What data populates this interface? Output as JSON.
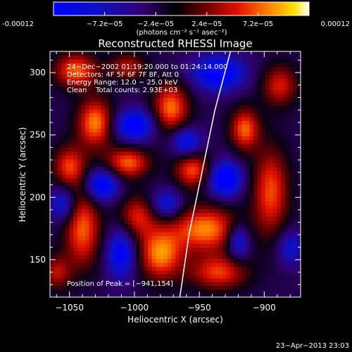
{
  "colorbar": {
    "ticks": [
      "-0.00012",
      "−7.2e−05",
      "−2.4e−05",
      "2.4e−05",
      "7.2e−05",
      "0.00012"
    ],
    "units": "(photons cm⁻² s⁻¹ asec⁻²)",
    "range": [
      -0.00012,
      0.00012
    ]
  },
  "chart_data": {
    "type": "heatmap",
    "title": "Reconstructed RHESSI Image",
    "xlabel": "Heliocentric X (arcsec)",
    "ylabel": "Heliocentric Y (arcsec)",
    "xlim": [
      -1065,
      -872
    ],
    "ylim": [
      120,
      317
    ],
    "xticks": [
      -1050,
      -1000,
      -950,
      -900
    ],
    "xtick_labels": [
      "−1050",
      "−1000",
      "−950",
      "−900"
    ],
    "yticks": [
      150,
      200,
      250,
      300
    ],
    "ytick_labels": [
      "150",
      "200",
      "250",
      "300"
    ],
    "limb_curve": [
      [
        -965,
        120
      ],
      [
        -958,
        170
      ],
      [
        -948,
        220
      ],
      [
        -938,
        270
      ],
      [
        -926,
        317
      ]
    ],
    "peak": [
      -941,
      154
    ],
    "blobs": [
      {
        "x": -1045,
        "y": 302,
        "sx": 12,
        "sy": 10,
        "a": 0.9
      },
      {
        "x": -1030,
        "y": 260,
        "sx": 10,
        "sy": 14,
        "a": 1.0
      },
      {
        "x": -1050,
        "y": 225,
        "sx": 9,
        "sy": 12,
        "a": 0.8
      },
      {
        "x": -1040,
        "y": 175,
        "sx": 10,
        "sy": 22,
        "a": 0.9
      },
      {
        "x": -1005,
        "y": 228,
        "sx": 12,
        "sy": 9,
        "a": 0.9
      },
      {
        "x": -998,
        "y": 185,
        "sx": 10,
        "sy": 12,
        "a": 0.7
      },
      {
        "x": -980,
        "y": 155,
        "sx": 12,
        "sy": 15,
        "a": 1.0
      },
      {
        "x": -972,
        "y": 272,
        "sx": 10,
        "sy": 14,
        "a": 0.95
      },
      {
        "x": -955,
        "y": 222,
        "sx": 10,
        "sy": 10,
        "a": 0.85
      },
      {
        "x": -945,
        "y": 175,
        "sx": 18,
        "sy": 13,
        "a": 1.0
      },
      {
        "x": -935,
        "y": 140,
        "sx": 16,
        "sy": 10,
        "a": 0.8
      },
      {
        "x": -915,
        "y": 255,
        "sx": 8,
        "sy": 12,
        "a": 0.9
      },
      {
        "x": -895,
        "y": 205,
        "sx": 10,
        "sy": 25,
        "a": 0.85
      },
      {
        "x": -888,
        "y": 290,
        "sx": 10,
        "sy": 12,
        "a": 0.7
      },
      {
        "x": -1005,
        "y": 305,
        "sx": 10,
        "sy": 8,
        "a": 0.6
      },
      {
        "x": -1060,
        "y": 140,
        "sx": 8,
        "sy": 10,
        "a": 0.6
      },
      {
        "x": -1025,
        "y": 210,
        "sx": 9,
        "sy": 9,
        "a": -1.0
      },
      {
        "x": -1000,
        "y": 258,
        "sx": 11,
        "sy": 9,
        "a": -1.0
      },
      {
        "x": -935,
        "y": 300,
        "sx": 14,
        "sy": 10,
        "a": -1.0
      },
      {
        "x": -930,
        "y": 215,
        "sx": 9,
        "sy": 10,
        "a": -1.1
      },
      {
        "x": -1010,
        "y": 155,
        "sx": 8,
        "sy": 14,
        "a": -0.9
      },
      {
        "x": -960,
        "y": 245,
        "sx": 8,
        "sy": 8,
        "a": -0.8
      },
      {
        "x": -920,
        "y": 165,
        "sx": 6,
        "sy": 10,
        "a": -0.8
      },
      {
        "x": -1055,
        "y": 195,
        "sx": 7,
        "sy": 10,
        "a": -0.7
      },
      {
        "x": -975,
        "y": 195,
        "sx": 8,
        "sy": 8,
        "a": -0.7
      },
      {
        "x": -880,
        "y": 160,
        "sx": 7,
        "sy": 10,
        "a": -0.6
      }
    ]
  },
  "info": {
    "line1": "24−Dec−2002 01:19:20.000 to 01:24:14.000",
    "line2": "Detectors: 4F 5F 6F 7F 8F, Att 0",
    "line3": "Energy Range: 12.0 − 25.0 keV",
    "line4": "Clean    Total counts: 2.93E+03"
  },
  "peak_label": "Position of Peak = [−941,154]",
  "timestamp": "23−Apr−2013 23:03"
}
